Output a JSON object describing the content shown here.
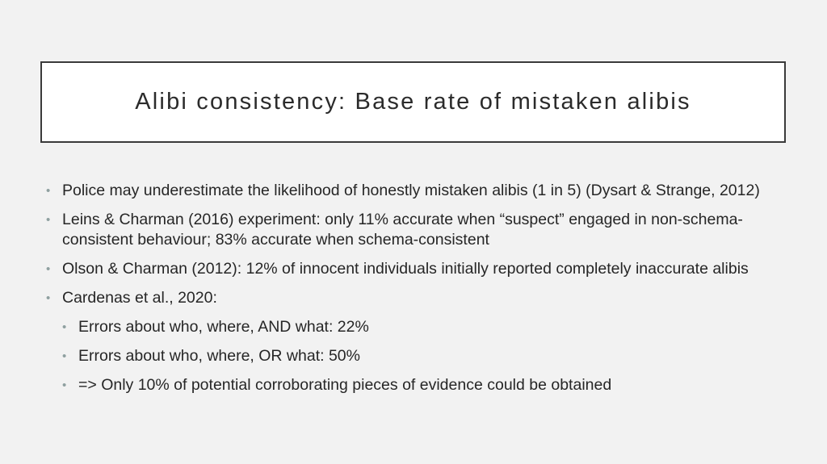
{
  "slide": {
    "title": "Alibi consistency: Base rate of mistaken alibis",
    "bullet_glyph": "•",
    "bullets": [
      {
        "text": "Police may underestimate the likelihood of honestly mistaken alibis (1 in 5) (Dysart & Strange, 2012)"
      },
      {
        "text": "Leins & Charman (2016) experiment: only 11% accurate when “suspect” engaged in non-schema-consistent behaviour; 83% accurate when schema-consistent"
      },
      {
        "text": "Olson & Charman (2012): 12% of innocent individuals initially reported completely inaccurate alibis"
      },
      {
        "text": "Cardenas et al., 2020:"
      }
    ],
    "sub_bullets": [
      {
        "text": "Errors about who, where, AND what: 22%"
      },
      {
        "text": "Errors about who, where, OR what: 50%"
      },
      {
        "text": "=> Only 10% of potential corroborating pieces of evidence could be obtained"
      }
    ]
  },
  "colors": {
    "background": "#f2f2f2",
    "title_border": "#3a3a3a",
    "bullet": "#8fa0a0",
    "text": "#262626"
  }
}
